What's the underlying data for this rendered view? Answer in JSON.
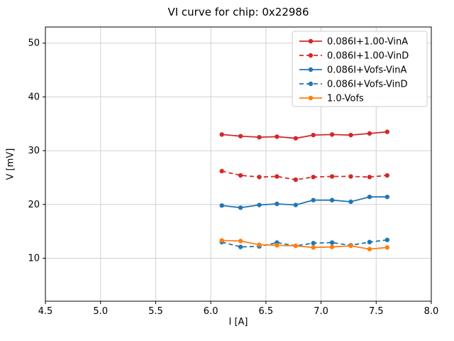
{
  "figure": {
    "background": "#ffffff",
    "axes_edge_color": "#000000",
    "grid_color": "#d0d0d0"
  },
  "chart_data": {
    "type": "line",
    "title": "VI curve for chip: 0x22986",
    "xlabel": "I [A]",
    "ylabel": "V [mV]",
    "xlim": [
      4.5,
      8.0
    ],
    "ylim": [
      2,
      53
    ],
    "xticks": [
      4.5,
      5.0,
      5.5,
      6.0,
      6.5,
      7.0,
      7.5,
      8.0
    ],
    "yticks": [
      10,
      20,
      30,
      40,
      50
    ],
    "grid": true,
    "legend_position": "upper right",
    "x": [
      6.1,
      6.27,
      6.44,
      6.6,
      6.77,
      6.93,
      7.1,
      7.27,
      7.44,
      7.6
    ],
    "series": [
      {
        "name": "0.086I+1.00-VinA",
        "color": "#d62728",
        "style": "solid",
        "marker": "circle",
        "values": [
          33.0,
          32.7,
          32.5,
          32.6,
          32.3,
          32.9,
          33.0,
          32.9,
          33.2,
          33.5
        ]
      },
      {
        "name": "0.086I+1.00-VinD",
        "color": "#d62728",
        "style": "dashed",
        "marker": "circle",
        "values": [
          26.2,
          25.4,
          25.1,
          25.2,
          24.6,
          25.1,
          25.2,
          25.2,
          25.1,
          25.4
        ]
      },
      {
        "name": "0.086I+Vofs-VinA",
        "color": "#1f77b4",
        "style": "solid",
        "marker": "circle",
        "values": [
          19.8,
          19.4,
          19.9,
          20.1,
          19.9,
          20.8,
          20.8,
          20.5,
          21.4,
          21.4
        ]
      },
      {
        "name": "0.086I+Vofs-VinD",
        "color": "#1f77b4",
        "style": "dashed",
        "marker": "circle",
        "values": [
          13.0,
          12.1,
          12.2,
          12.9,
          12.3,
          12.8,
          12.9,
          12.4,
          13.0,
          13.4
        ]
      },
      {
        "name": "1.0-Vofs",
        "color": "#ff7f0e",
        "style": "solid",
        "marker": "circle",
        "values": [
          13.3,
          13.2,
          12.5,
          12.4,
          12.3,
          12.0,
          12.1,
          12.3,
          11.7,
          12.0
        ]
      }
    ]
  }
}
